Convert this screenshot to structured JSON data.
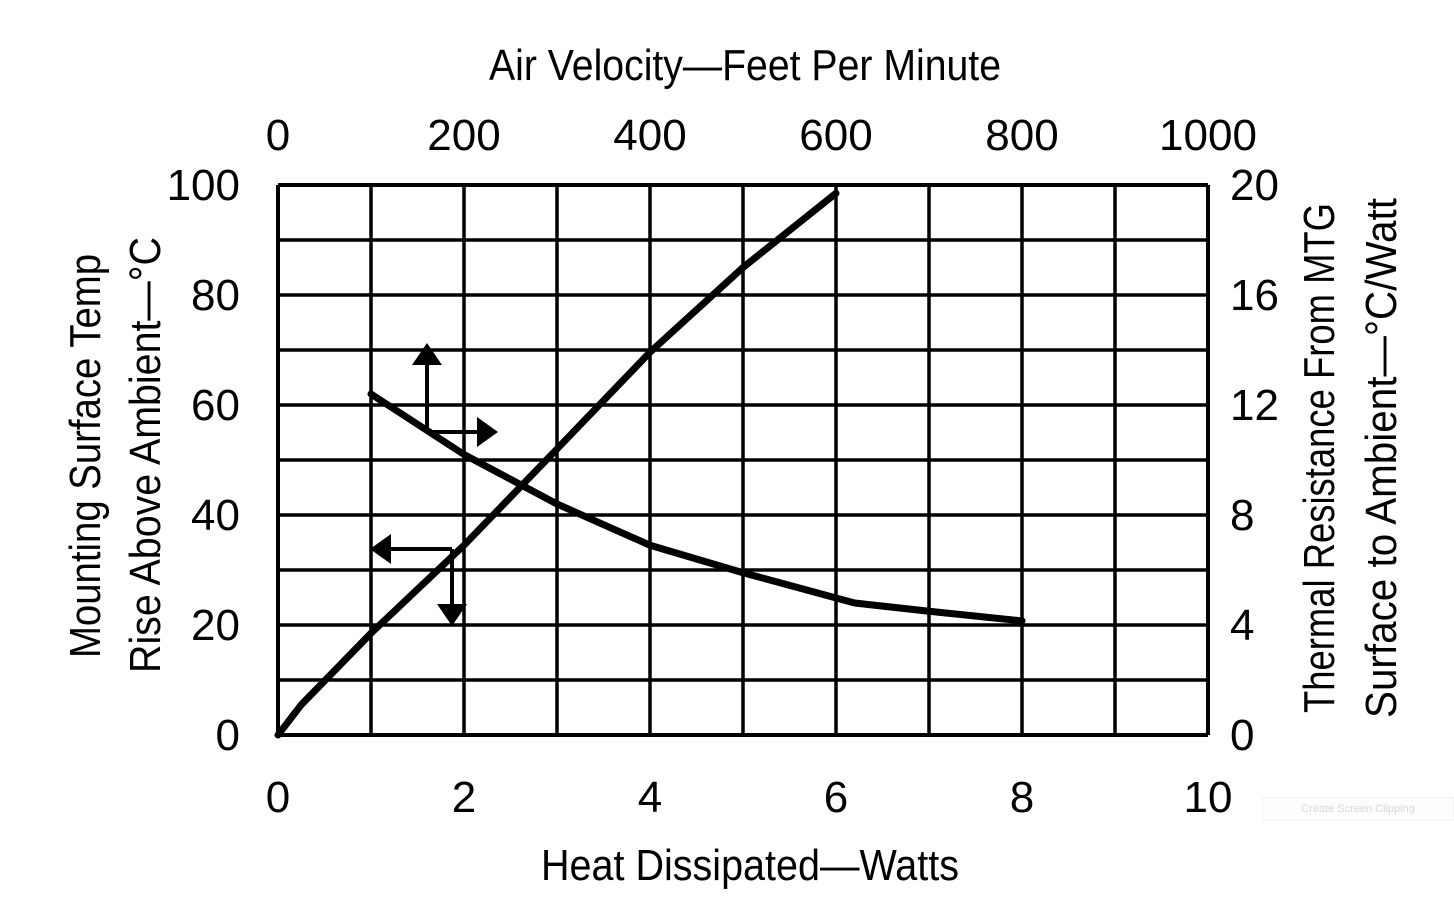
{
  "chart_data": {
    "type": "line",
    "top_axis": {
      "label": "Air Velocity—Feet Per Minute",
      "ticks": [
        "0",
        "200",
        "400",
        "600",
        "800",
        "1000"
      ],
      "range": [
        0,
        1000
      ]
    },
    "bottom_axis": {
      "label": "Heat Dissipated—Watts",
      "ticks": [
        "0",
        "2",
        "4",
        "6",
        "8",
        "10"
      ],
      "range": [
        0,
        10
      ]
    },
    "left_axis": {
      "label_line1": "Mounting Surface Temp",
      "label_line2": "Rise Above Ambient—°C",
      "ticks": [
        "0",
        "20",
        "40",
        "60",
        "80",
        "100"
      ],
      "range": [
        0,
        100
      ]
    },
    "right_axis": {
      "label_line1": "Thermal Resistance From MTG",
      "label_line2": "Surface to Ambient—°C/Watt",
      "ticks": [
        "0",
        "4",
        "8",
        "12",
        "16",
        "20"
      ],
      "range": [
        0,
        20
      ]
    },
    "grid": true,
    "series": [
      {
        "axes": "bottom-left",
        "x": [
          0,
          0.25,
          1,
          2,
          3,
          4,
          5,
          6
        ],
        "y": [
          0,
          5.5,
          18.5,
          34.5,
          52,
          69.6,
          85,
          98.5
        ],
        "arrow": "left-down"
      },
      {
        "axes": "top-right",
        "x": [
          100,
          200,
          300,
          400,
          500,
          620,
          700,
          800
        ],
        "y": [
          12.4,
          10.2,
          8.4,
          6.9,
          5.9,
          4.8,
          4.5,
          4.15
        ],
        "arrow": "up-right"
      }
    ]
  },
  "overlay": {
    "screen_clipping_label": "Create Screen Clipping"
  }
}
